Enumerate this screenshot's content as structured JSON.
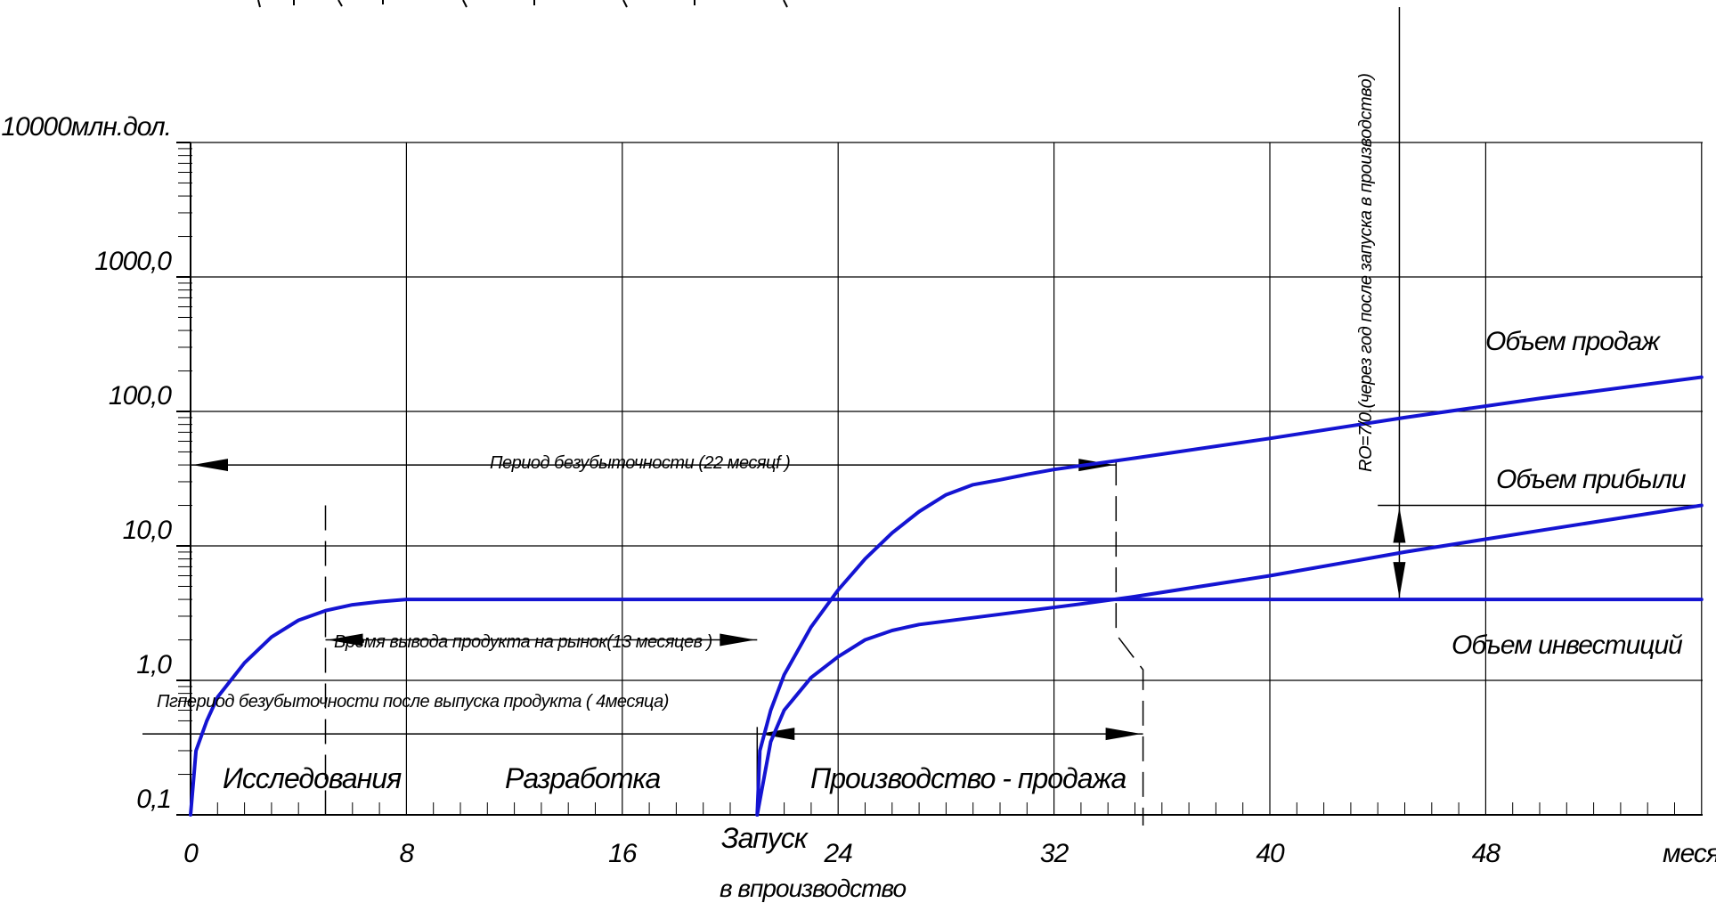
{
  "chart_data": {
    "type": "line",
    "title": "",
    "xlabel": "месяцы",
    "ylabel": "",
    "y_scale": "log",
    "xlim": [
      0,
      56
    ],
    "ylim": [
      0.1,
      10000
    ],
    "grid": true,
    "x_ticks": [
      "0",
      "8",
      "16",
      "24",
      "32",
      "40",
      "48"
    ],
    "y_ticks": [
      {
        "value": 0.1,
        "label": "0,1"
      },
      {
        "value": 1,
        "label": "1,0"
      },
      {
        "value": 10,
        "label": "10,0"
      },
      {
        "value": 100,
        "label": "100,0"
      },
      {
        "value": 1000,
        "label": "1000,0"
      },
      {
        "value": 10000,
        "label": "10000млн.дол."
      }
    ],
    "series": [
      {
        "name": "Объем продаж",
        "color": "#1414d2",
        "points": [
          [
            21,
            0.1
          ],
          [
            21.1,
            0.3
          ],
          [
            21.5,
            0.6
          ],
          [
            22,
            1.1
          ],
          [
            23,
            2.5
          ],
          [
            24,
            4.7
          ],
          [
            25,
            8
          ],
          [
            26,
            12.5
          ],
          [
            27,
            18
          ],
          [
            28,
            24
          ],
          [
            29,
            28.5
          ],
          [
            30,
            31
          ],
          [
            31,
            34
          ],
          [
            32,
            37
          ],
          [
            35,
            45
          ],
          [
            40,
            63
          ],
          [
            45,
            90
          ],
          [
            50,
            125
          ],
          [
            56,
            180
          ]
        ]
      },
      {
        "name": "Объем прибыли",
        "color": "#1414d2",
        "points": [
          [
            21,
            0.1
          ],
          [
            21.5,
            0.35
          ],
          [
            22,
            0.6
          ],
          [
            23,
            1.05
          ],
          [
            24,
            1.5
          ],
          [
            25,
            2.0
          ],
          [
            26,
            2.35
          ],
          [
            27,
            2.6
          ],
          [
            30,
            3.1
          ],
          [
            33,
            3.7
          ],
          [
            35,
            4.2
          ],
          [
            40,
            6.0
          ],
          [
            45,
            9.0
          ],
          [
            50,
            13
          ],
          [
            56,
            20
          ]
        ]
      },
      {
        "name": "Объем инвестиций",
        "color": "#1414d2",
        "points": [
          [
            0,
            0.1
          ],
          [
            0.2,
            0.3
          ],
          [
            0.6,
            0.5
          ],
          [
            1,
            0.75
          ],
          [
            2,
            1.35
          ],
          [
            3,
            2.1
          ],
          [
            4,
            2.8
          ],
          [
            5,
            3.3
          ],
          [
            6,
            3.65
          ],
          [
            7,
            3.85
          ],
          [
            8,
            4.0
          ],
          [
            12,
            4.0
          ],
          [
            20,
            4.0
          ],
          [
            30,
            4.0
          ],
          [
            40,
            4.0
          ],
          [
            56,
            4.0
          ]
        ]
      }
    ],
    "regions": [
      "Исследования",
      "Разработка",
      "Производство - продажа"
    ],
    "annotations": {
      "breakeven_period": "Период безубыточности (22 месяцf )",
      "time_to_market": "Время вывода продукта на рынок(13 месяцев )",
      "breakeven_after_launch": "Пгпериод безубыточности после выпуска продукта ( 4месяца)",
      "roi_note": "RO=7/0.(через год после запуска в производство)",
      "launch_line1": "Запуск",
      "launch_line2": "в впроизводство"
    }
  }
}
